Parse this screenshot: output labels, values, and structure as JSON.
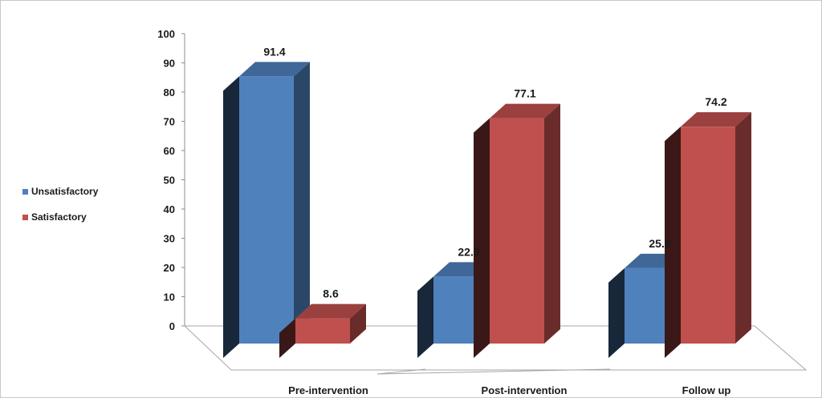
{
  "chart_data": {
    "type": "bar",
    "style": "3d-clustered-column",
    "categories": [
      "Pre-intervention",
      "Post-intervention",
      "Follow up"
    ],
    "series": [
      {
        "name": "Unsatisfactory",
        "values": [
          91.4,
          22.9,
          25.8
        ],
        "labels": [
          "91.4",
          "22.9",
          "25.8"
        ],
        "color": "#4f81bd"
      },
      {
        "name": "Satisfactory",
        "values": [
          8.6,
          77.1,
          74.2
        ],
        "labels": [
          "8.6",
          "77.1",
          "74.2"
        ],
        "color": "#c0504d"
      }
    ],
    "ylim": [
      0,
      100
    ],
    "yticks": [
      "0",
      "10",
      "20",
      "30",
      "40",
      "50",
      "60",
      "70",
      "80",
      "90",
      "100"
    ],
    "grid": false,
    "legend_position": "left"
  }
}
